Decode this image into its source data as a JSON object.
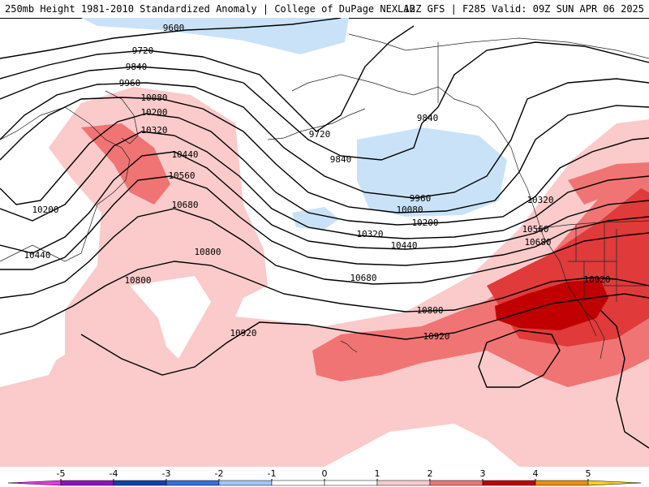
{
  "header": {
    "left": "250mb Height 1981-2010 Standardized Anomaly | College of DuPage NEXLAB",
    "right": "12Z GFS | F285 Valid: 09Z SUN APR 06 2025"
  },
  "colors": {
    "anom_neg1": "#c9e2f8",
    "anom_pos1": "#fbcaca",
    "anom_pos2": "#f07474",
    "anom_pos3": "#e03a3a",
    "anom_pos4": "#c00000",
    "contour": "#000000",
    "coast": "#222222"
  },
  "contour_labels": [
    {
      "id": "h9600a",
      "text": "9600"
    },
    {
      "id": "h9720a",
      "text": "9720"
    },
    {
      "id": "h9840a",
      "text": "9840"
    },
    {
      "id": "h9960a",
      "text": "9960"
    },
    {
      "id": "h10080a",
      "text": "10080"
    },
    {
      "id": "h10200a",
      "text": "10200"
    },
    {
      "id": "h10320a",
      "text": "10320"
    },
    {
      "id": "h10440a",
      "text": "10440"
    },
    {
      "id": "h10560a",
      "text": "10560"
    },
    {
      "id": "h10680a",
      "text": "10680"
    },
    {
      "id": "h10800a",
      "text": "10800"
    },
    {
      "id": "h10200b",
      "text": "10200"
    },
    {
      "id": "h10440b",
      "text": "10440"
    },
    {
      "id": "h10800b",
      "text": "10800"
    },
    {
      "id": "h10920a",
      "text": "10920"
    },
    {
      "id": "h9720b",
      "text": "9720"
    },
    {
      "id": "h9840b",
      "text": "9840"
    },
    {
      "id": "h9840c",
      "text": "9840"
    },
    {
      "id": "h9960b",
      "text": "9960"
    },
    {
      "id": "h10080b",
      "text": "10080"
    },
    {
      "id": "h10200c",
      "text": "10200"
    },
    {
      "id": "h10320b",
      "text": "10320"
    },
    {
      "id": "h10440c",
      "text": "10440"
    },
    {
      "id": "h10680b",
      "text": "10680"
    },
    {
      "id": "h10800c",
      "text": "10800"
    },
    {
      "id": "h10920b",
      "text": "10920"
    },
    {
      "id": "h10320c",
      "text": "10320"
    },
    {
      "id": "h10560b",
      "text": "10560"
    },
    {
      "id": "h10680c",
      "text": "10680"
    },
    {
      "id": "h10920c",
      "text": "10920"
    }
  ],
  "colorbar": {
    "ticks": [
      "-5",
      "-4",
      "-3",
      "-2",
      "-1",
      "0",
      "1",
      "2",
      "3",
      "4",
      "5"
    ],
    "colors": [
      "#ee33ee",
      "#9010c0",
      "#1040b0",
      "#2f6fe0",
      "#9fc6f5",
      "#ffffff",
      "#ffffff",
      "#fbcaca",
      "#f07474",
      "#c00000",
      "#f08c00",
      "#f5d020"
    ]
  }
}
